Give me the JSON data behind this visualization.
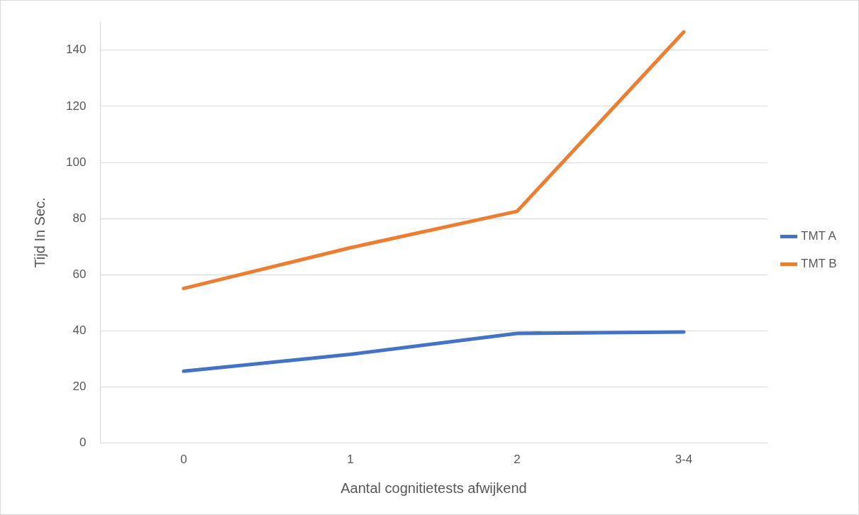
{
  "chart_data": {
    "type": "line",
    "xlabel": "Aantal cognitietests afwijkend",
    "ylabel": "Tijd In Sec.",
    "categories": [
      "0",
      "1",
      "2",
      "3-4"
    ],
    "series": [
      {
        "name": "TMT A",
        "color": "#4472c4",
        "values": [
          25.6,
          31.6,
          39.1,
          39.6
        ]
      },
      {
        "name": "TMT B",
        "color": "#ed7d31",
        "values": [
          55.1,
          69.6,
          82.6,
          146.5
        ]
      }
    ],
    "ylim": [
      0,
      150
    ],
    "yticks": [
      0,
      20,
      40,
      60,
      80,
      100,
      120,
      140
    ],
    "grid": "y",
    "legend": "right",
    "marker": "none",
    "line_style": "solid"
  }
}
